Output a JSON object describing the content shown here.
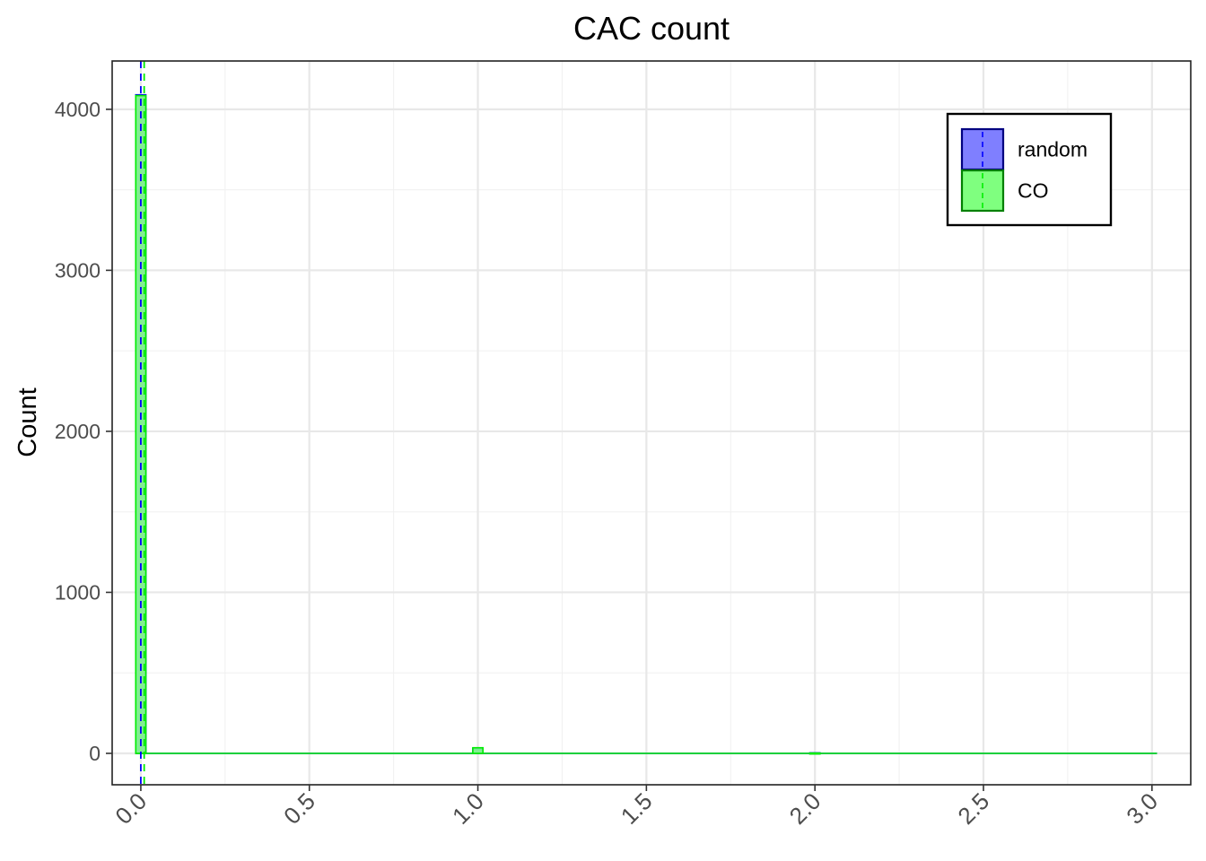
{
  "chart_data": {
    "type": "bar",
    "title": "CAC count",
    "xlabel": "",
    "ylabel": "Count",
    "xlim": [
      -0.085,
      3.115
    ],
    "ylim": [
      -195,
      4300
    ],
    "x_ticks": [
      0.0,
      0.5,
      1.0,
      1.5,
      2.0,
      2.5,
      3.0
    ],
    "x_tick_labels": [
      "0.0",
      "0.5",
      "1.0",
      "1.5",
      "2.0",
      "2.5",
      "3.0"
    ],
    "x_minor_ticks": [
      0.25,
      0.75,
      1.25,
      1.75,
      2.25,
      2.75
    ],
    "y_ticks": [
      0,
      1000,
      2000,
      3000,
      4000
    ],
    "y_tick_labels": [
      "0",
      "1000",
      "2000",
      "3000",
      "4000"
    ],
    "y_minor_ticks": [
      500,
      1500,
      2500,
      3500
    ],
    "grid": true,
    "legend_position": "top-right",
    "bin_width": 0.03,
    "x_range": [
      -0.015,
      3.015
    ],
    "series": [
      {
        "name": "random",
        "fill": "#7f7fff",
        "stroke": "#0000ff",
        "mean": 0.0,
        "bins": [
          {
            "x": 0.0,
            "count": 4090
          },
          {
            "x": 1.0,
            "count": 30
          },
          {
            "x": 2.0,
            "count": 3
          }
        ]
      },
      {
        "name": "CO",
        "fill": "#7fff7f",
        "stroke": "#00ee00",
        "mean": 0.01,
        "bins": [
          {
            "x": 0.0,
            "count": 4085
          },
          {
            "x": 1.0,
            "count": 35
          },
          {
            "x": 2.0,
            "count": 2
          }
        ]
      }
    ]
  }
}
